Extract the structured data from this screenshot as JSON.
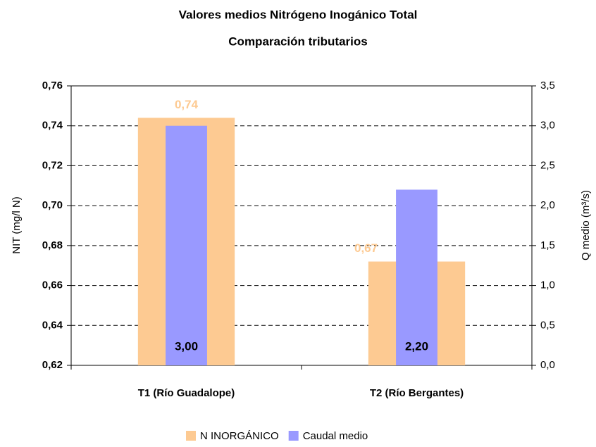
{
  "chart_data": {
    "type": "bar",
    "title": "Valores medios Nitrógeno Inogánico Total",
    "subtitle": "Comparación tributarios",
    "categories": [
      "T1 (Río Guadalope)",
      "T2 (Río Bergantes)"
    ],
    "series": [
      {
        "name": "N INORGÁNICO",
        "color": "#fdca92",
        "values": [
          0.744,
          0.672
        ],
        "value_labels": [
          "0,74",
          "0,67"
        ],
        "label_color": "#fdca92"
      },
      {
        "name": "Caudal medio",
        "color": "#9999ff",
        "axis": "y2",
        "values": [
          3.0,
          2.2
        ],
        "value_labels": [
          "3,00",
          "2,20"
        ],
        "label_color": "#000000"
      }
    ],
    "ylabel": "NIT (mg/l N)",
    "y2label": "Q medio (m³/s)",
    "ylim": [
      0.62,
      0.76
    ],
    "yticks": [
      {
        "value": 0.62,
        "label": "0,62"
      },
      {
        "value": 0.64,
        "label": "0,64"
      },
      {
        "value": 0.66,
        "label": "0,66"
      },
      {
        "value": 0.68,
        "label": "0,68"
      },
      {
        "value": 0.7,
        "label": "0,70"
      },
      {
        "value": 0.72,
        "label": "0,72"
      },
      {
        "value": 0.74,
        "label": "0,74"
      },
      {
        "value": 0.76,
        "label": "0,76"
      }
    ],
    "y2lim": [
      0,
      3.5
    ],
    "y2ticks": [
      {
        "value": 0,
        "label": "0,0"
      },
      {
        "value": 0.5,
        "label": "0,5"
      },
      {
        "value": 1,
        "label": "1,0"
      },
      {
        "value": 1.5,
        "label": "1,5"
      },
      {
        "value": 2,
        "label": "2,0"
      },
      {
        "value": 2.5,
        "label": "2,5"
      },
      {
        "value": 3,
        "label": "3,0"
      },
      {
        "value": 3.5,
        "label": "3,5"
      }
    ],
    "grid": true,
    "legend": "bottom"
  }
}
